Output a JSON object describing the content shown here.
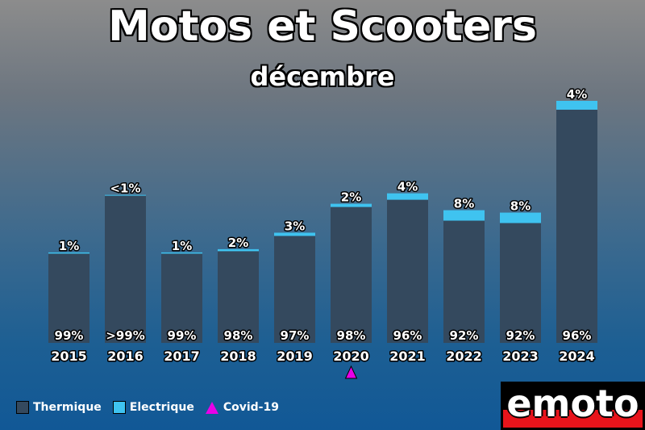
{
  "title": "Motos et Scooters",
  "subtitle": "décembre",
  "colors": {
    "thermique": "#34495e",
    "electrique": "#3fc3f0",
    "covid": "#e800e8"
  },
  "legend": [
    {
      "label": "Thermique",
      "icon": "square-swatch",
      "color_key": "thermique"
    },
    {
      "label": "Electrique",
      "icon": "square-swatch",
      "color_key": "electrique"
    },
    {
      "label": "Covid-19",
      "icon": "triangle-marker",
      "color_key": "covid"
    }
  ],
  "logo": {
    "text": "emoto"
  },
  "chart_data": {
    "type": "bar",
    "stacked": true,
    "title": "Motos et Scooters",
    "subtitle": "décembre",
    "categories": [
      "2015",
      "2016",
      "2017",
      "2018",
      "2019",
      "2020",
      "2021",
      "2022",
      "2023",
      "2024"
    ],
    "series": [
      {
        "name": "Thermique",
        "values": [
          111,
          183,
          111,
          114,
          133,
          169,
          178,
          152,
          149,
          290
        ]
      },
      {
        "name": "Electrique",
        "values": [
          1.5,
          1,
          1.5,
          2.5,
          4,
          4,
          8,
          13,
          13,
          11
        ]
      }
    ],
    "totals": [
      112.5,
      184,
      112.5,
      116.5,
      137,
      173,
      186,
      165,
      162,
      301
    ],
    "labels_bottom": [
      "99%",
      ">99%",
      "99%",
      "98%",
      "97%",
      "98%",
      "96%",
      "92%",
      "92%",
      "96%"
    ],
    "labels_top": [
      "1%",
      "<1%",
      "1%",
      "2%",
      "3%",
      "2%",
      "4%",
      "8%",
      "8%",
      "4%"
    ],
    "annotations": [
      {
        "category": "2020",
        "marker": "triangle",
        "label": "Covid-19"
      }
    ],
    "ylim": [
      0,
      301
    ],
    "grid": false,
    "legend_position": "bottom-left"
  }
}
